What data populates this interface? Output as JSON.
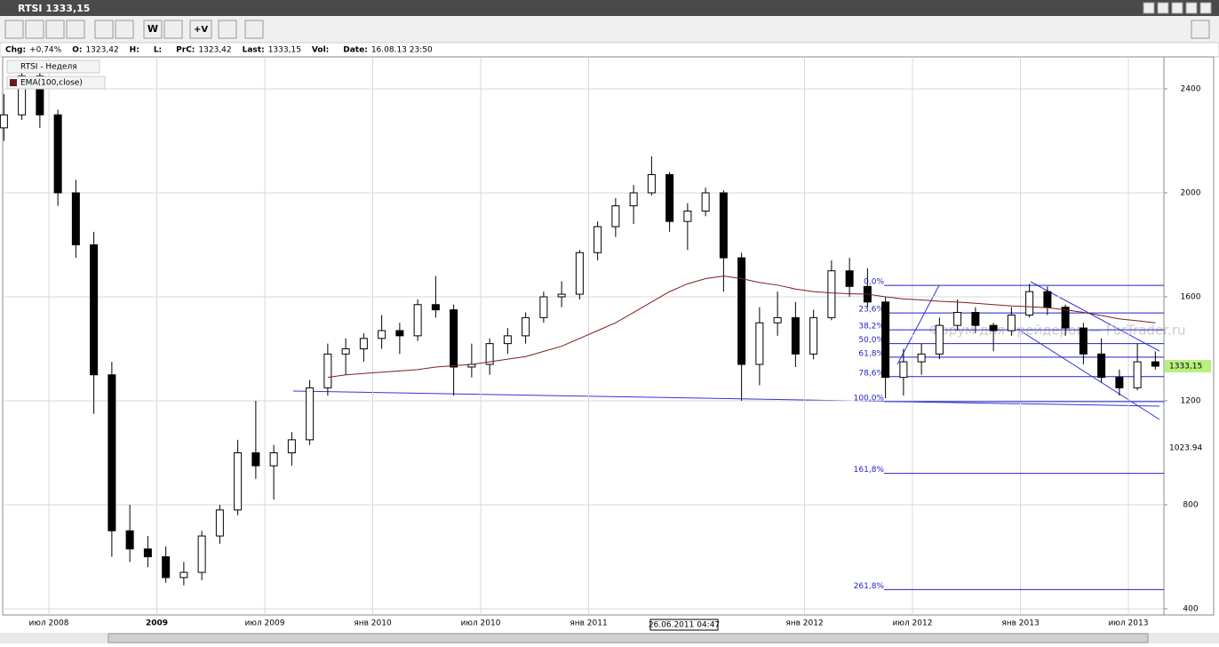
{
  "window": {
    "title": "RTSI 1333,15"
  },
  "toolbar": {
    "buttons": [
      "W",
      "+V"
    ]
  },
  "info_bar": [
    {
      "label": "Chg:",
      "value": "+0,74%"
    },
    {
      "label": "O:",
      "value": "1323,42"
    },
    {
      "label": "H:",
      "value": ""
    },
    {
      "label": "L:",
      "value": ""
    },
    {
      "label": "PrC:",
      "value": "1323,42"
    },
    {
      "label": "Last:",
      "value": "1333,15"
    },
    {
      "label": "Vol:",
      "value": ""
    },
    {
      "label": "Date:",
      "value": "16.08.13 23:50"
    }
  ],
  "chart_data": {
    "type": "candlestick",
    "legend": [
      "RTSI - Неделя",
      "EMA(100,close)"
    ],
    "watermark": "Форум для трейдеров — ForTrader.ru",
    "crosshair_label": "26.06.2011 04:47",
    "price_labels": [
      "1333,15",
      "1023.94"
    ],
    "ylim": [
      376,
      2523
    ],
    "yticks": [
      400,
      800,
      1200,
      1600,
      2000,
      2400
    ],
    "xticks": [
      {
        "value": 3,
        "label": "июл 2008"
      },
      {
        "value": 9,
        "label": "2009"
      },
      {
        "value": 15,
        "label": "июл 2009"
      },
      {
        "value": 21,
        "label": "янв 2010"
      },
      {
        "value": 27,
        "label": "июл 2010"
      },
      {
        "value": 33,
        "label": "янв 2011"
      },
      {
        "value": 45,
        "label": "янв 2012"
      },
      {
        "value": 51,
        "label": "июл 2012"
      },
      {
        "value": 57,
        "label": "янв 2013"
      },
      {
        "value": 63,
        "label": "июл 2013"
      }
    ],
    "candles": [
      [
        2250,
        2380,
        2200,
        2300
      ],
      [
        2300,
        2480,
        2280,
        2450
      ],
      [
        2450,
        2460,
        2250,
        2300
      ],
      [
        2300,
        2320,
        1950,
        2000
      ],
      [
        2000,
        2050,
        1750,
        1800
      ],
      [
        1800,
        1850,
        1150,
        1300
      ],
      [
        1300,
        1350,
        600,
        700
      ],
      [
        700,
        800,
        580,
        630
      ],
      [
        630,
        680,
        560,
        600
      ],
      [
        600,
        640,
        500,
        520
      ],
      [
        520,
        580,
        490,
        540
      ],
      [
        540,
        700,
        510,
        680
      ],
      [
        680,
        800,
        650,
        780
      ],
      [
        780,
        1050,
        760,
        1000
      ],
      [
        1000,
        1200,
        900,
        950
      ],
      [
        950,
        1030,
        820,
        1000
      ],
      [
        1000,
        1080,
        950,
        1050
      ],
      [
        1050,
        1280,
        1030,
        1250
      ],
      [
        1250,
        1420,
        1220,
        1380
      ],
      [
        1380,
        1440,
        1300,
        1400
      ],
      [
        1400,
        1460,
        1350,
        1440
      ],
      [
        1440,
        1530,
        1400,
        1470
      ],
      [
        1470,
        1500,
        1380,
        1450
      ],
      [
        1450,
        1590,
        1430,
        1570
      ],
      [
        1570,
        1680,
        1520,
        1550
      ],
      [
        1550,
        1570,
        1220,
        1330
      ],
      [
        1330,
        1420,
        1290,
        1340
      ],
      [
        1340,
        1440,
        1300,
        1420
      ],
      [
        1420,
        1480,
        1380,
        1450
      ],
      [
        1450,
        1540,
        1420,
        1520
      ],
      [
        1520,
        1620,
        1500,
        1600
      ],
      [
        1600,
        1660,
        1560,
        1610
      ],
      [
        1610,
        1780,
        1590,
        1770
      ],
      [
        1770,
        1890,
        1740,
        1870
      ],
      [
        1870,
        1980,
        1830,
        1950
      ],
      [
        1950,
        2030,
        1880,
        2000
      ],
      [
        2000,
        2140,
        1990,
        2070
      ],
      [
        2070,
        2080,
        1850,
        1890
      ],
      [
        1890,
        1960,
        1780,
        1930
      ],
      [
        1930,
        2020,
        1910,
        2000
      ],
      [
        2000,
        2010,
        1620,
        1750
      ],
      [
        1750,
        1770,
        1200,
        1340
      ],
      [
        1340,
        1560,
        1260,
        1500
      ],
      [
        1500,
        1620,
        1450,
        1520
      ],
      [
        1520,
        1580,
        1330,
        1380
      ],
      [
        1380,
        1550,
        1360,
        1520
      ],
      [
        1520,
        1740,
        1510,
        1700
      ],
      [
        1700,
        1750,
        1600,
        1640
      ],
      [
        1640,
        1710,
        1560,
        1580
      ],
      [
        1580,
        1600,
        1210,
        1290
      ],
      [
        1290,
        1400,
        1220,
        1350
      ],
      [
        1350,
        1420,
        1300,
        1380
      ],
      [
        1380,
        1520,
        1360,
        1490
      ],
      [
        1490,
        1590,
        1470,
        1540
      ],
      [
        1540,
        1560,
        1460,
        1490
      ],
      [
        1490,
        1500,
        1390,
        1470
      ],
      [
        1470,
        1560,
        1450,
        1530
      ],
      [
        1530,
        1650,
        1520,
        1620
      ],
      [
        1620,
        1640,
        1530,
        1560
      ],
      [
        1560,
        1570,
        1450,
        1480
      ],
      [
        1480,
        1500,
        1340,
        1380
      ],
      [
        1380,
        1440,
        1270,
        1290
      ],
      [
        1290,
        1320,
        1220,
        1250
      ],
      [
        1250,
        1420,
        1240,
        1350
      ],
      [
        1350,
        1390,
        1320,
        1333.15
      ]
    ],
    "ema": {
      "name": "EMA(100,close)",
      "color": "#7a2020",
      "values": [
        null,
        null,
        null,
        null,
        null,
        null,
        null,
        null,
        null,
        null,
        null,
        null,
        null,
        null,
        null,
        null,
        null,
        null,
        1290,
        1300,
        1305,
        1310,
        1315,
        1320,
        1330,
        1335,
        1340,
        1350,
        1360,
        1370,
        1390,
        1410,
        1440,
        1470,
        1500,
        1540,
        1580,
        1620,
        1650,
        1670,
        1680,
        1670,
        1655,
        1645,
        1630,
        1620,
        1615,
        1612,
        1610,
        1600,
        1592,
        1588,
        1583,
        1580,
        1575,
        1570,
        1565,
        1562,
        1558,
        1550,
        1540,
        1528,
        1515,
        1508,
        1500
      ]
    },
    "fibonacci": [
      {
        "label": "0,0%",
        "price": 1644
      },
      {
        "label": "23,6%",
        "price": 1538
      },
      {
        "label": "38,2%",
        "price": 1473
      },
      {
        "label": "50,0%",
        "price": 1420
      },
      {
        "label": "61,8%",
        "price": 1368
      },
      {
        "label": "78,6%",
        "price": 1293
      },
      {
        "label": "100,0%",
        "price": 1197
      },
      {
        "label": "161,8%",
        "price": 921
      },
      {
        "label": "261,8%",
        "price": 474
      }
    ]
  }
}
